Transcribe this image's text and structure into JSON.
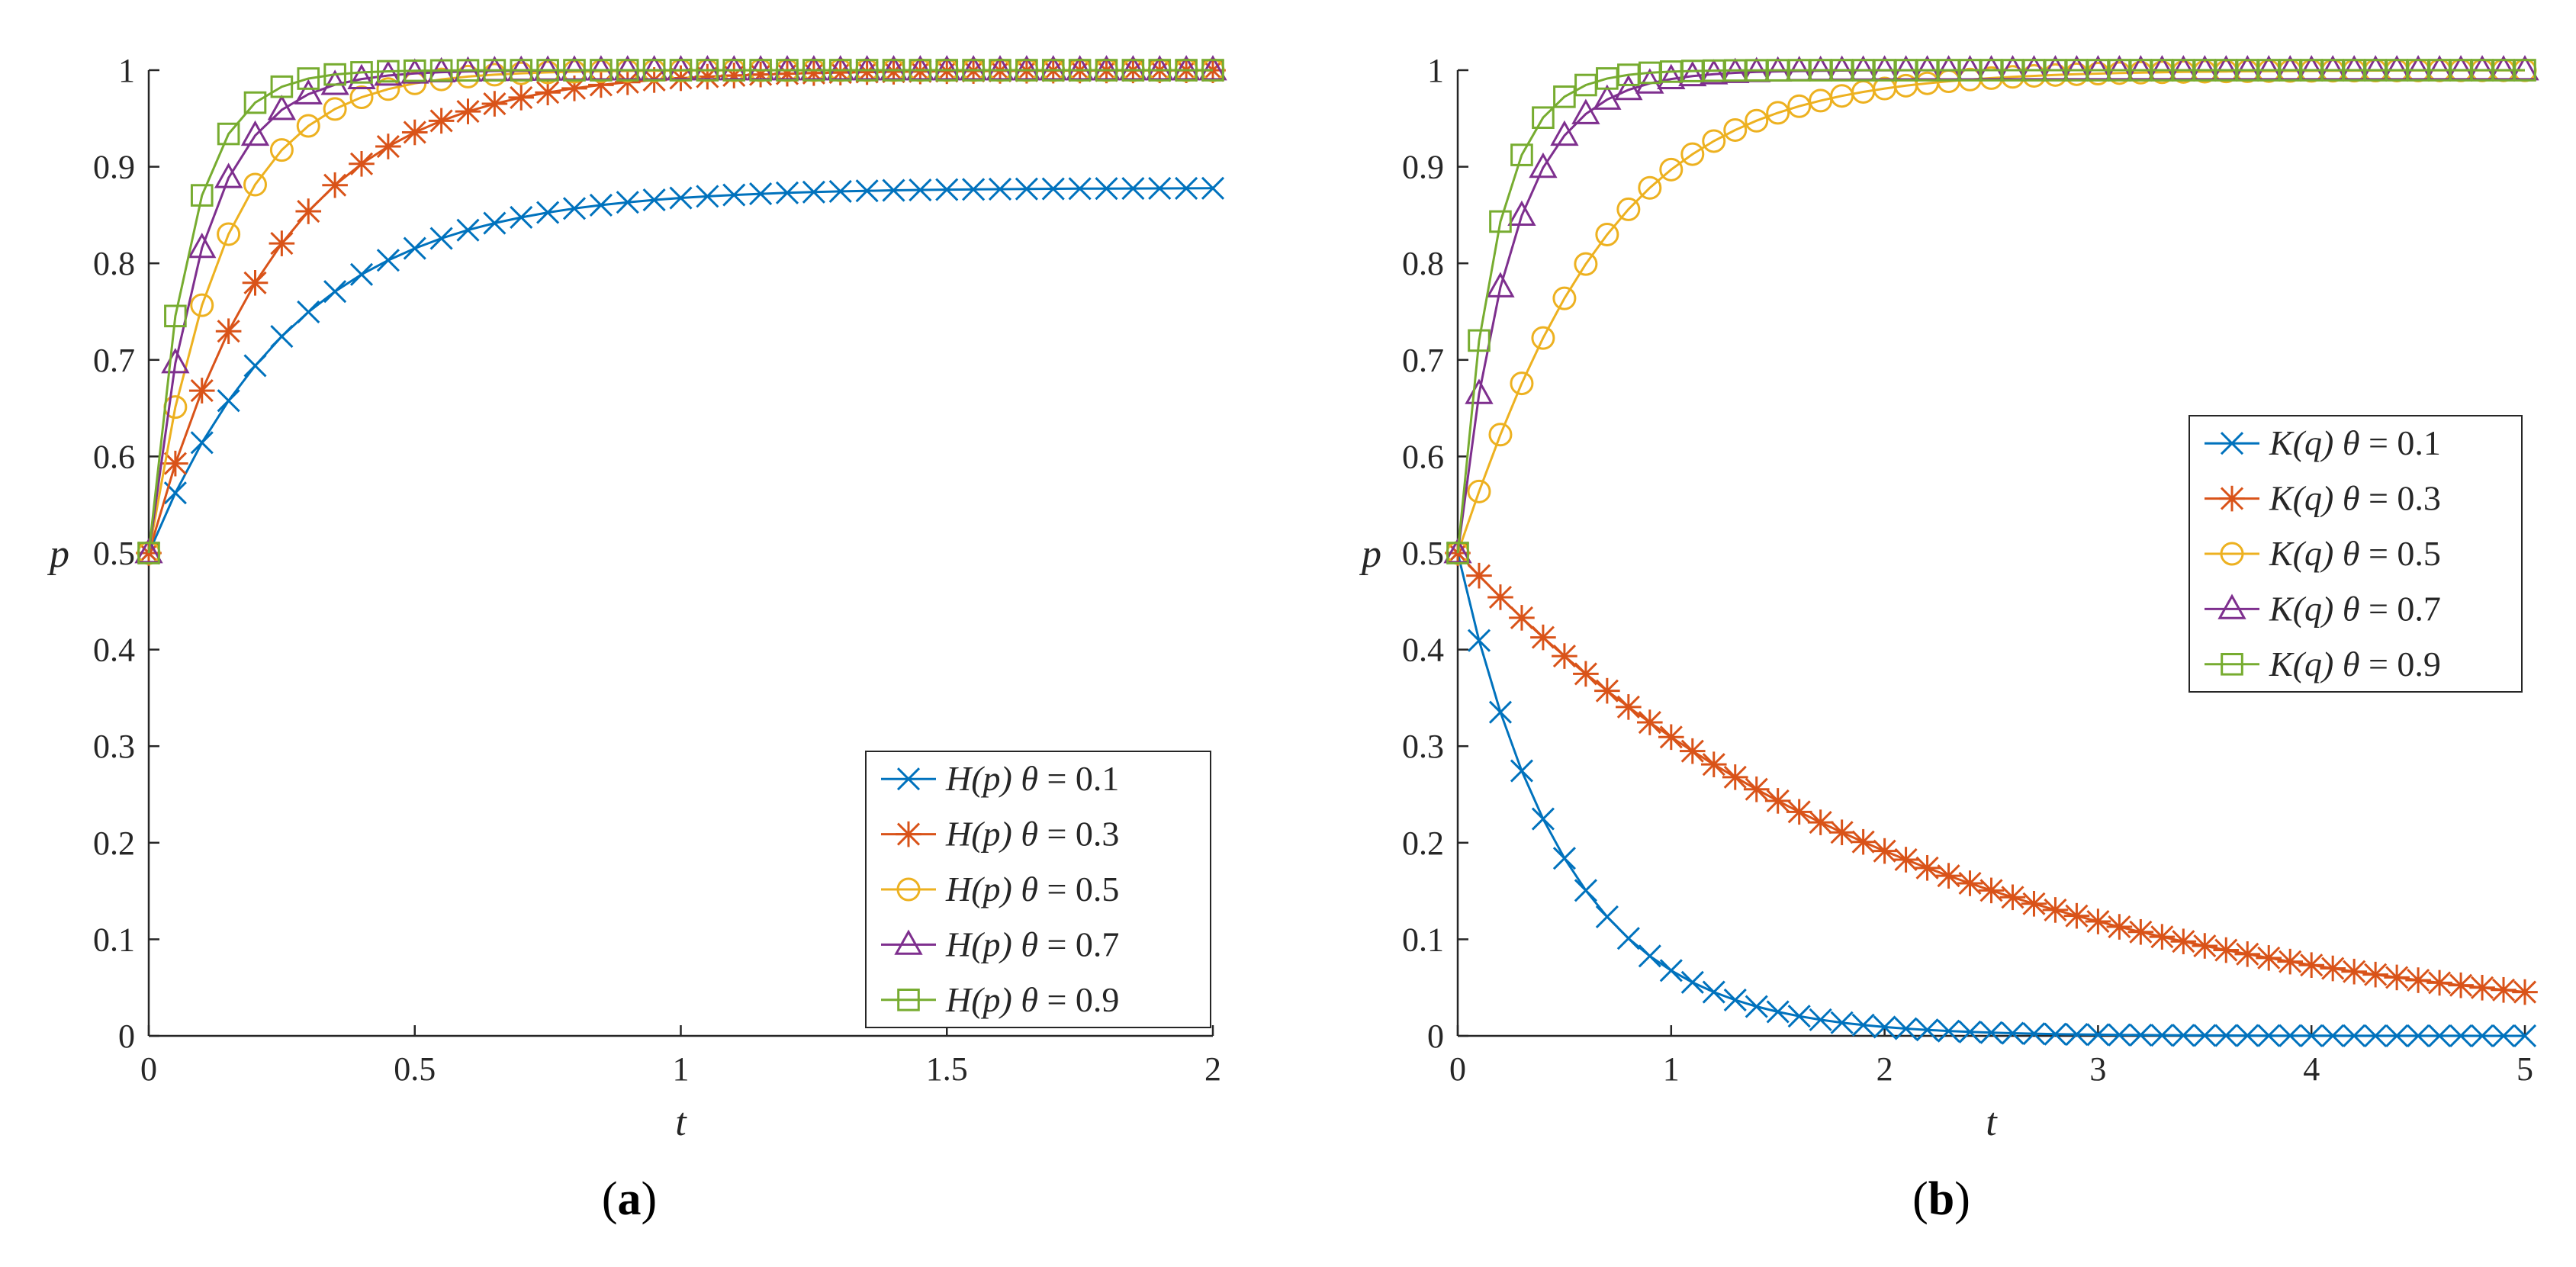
{
  "chart_data": [
    {
      "type": "line",
      "panel_label": "a",
      "xlabel": "t",
      "ylabel": "p",
      "xlim": [
        0,
        2
      ],
      "ylim": [
        0,
        1
      ],
      "xticks": [
        0,
        0.5,
        1,
        1.5,
        2
      ],
      "xtick_labels": [
        "0",
        "0.5",
        "1",
        "1.5",
        "2"
      ],
      "yticks": [
        0,
        0.1,
        0.2,
        0.3,
        0.4,
        0.5,
        0.6,
        0.7,
        0.8,
        0.9,
        1
      ],
      "ytick_labels": [
        "0",
        "0.1",
        "0.2",
        "0.3",
        "0.4",
        "0.5",
        "0.6",
        "0.7",
        "0.8",
        "0.9",
        "1"
      ],
      "legend_position": "bottom-right",
      "x_step": 0.05,
      "series": [
        {
          "name": "H(p) θ = 0.1",
          "func": "H",
          "theta": "0.1",
          "color": "#0072BD",
          "marker": "x",
          "start": 0.5,
          "limit": 0.878,
          "rate": 3.6
        },
        {
          "name": "H(p) θ = 0.3",
          "func": "H",
          "theta": "0.3",
          "color": "#D95319",
          "marker": "*",
          "start": 0.5,
          "limit": 1.0,
          "rate": 4.1
        },
        {
          "name": "H(p) θ = 0.5",
          "func": "H",
          "theta": "0.5",
          "color": "#EDB120",
          "marker": "o",
          "start": 0.5,
          "limit": 1.0,
          "rate": 7.2
        },
        {
          "name": "H(p) θ = 0.7",
          "func": "H",
          "theta": "0.7",
          "color": "#7E2F8E",
          "marker": "^",
          "start": 0.5,
          "limit": 1.0,
          "rate": 10.0
        },
        {
          "name": "H(p) θ = 0.9",
          "func": "H",
          "theta": "0.9",
          "color": "#77AC30",
          "marker": "s",
          "start": 0.5,
          "limit": 1.0,
          "rate": 13.5
        }
      ]
    },
    {
      "type": "line",
      "panel_label": "b",
      "xlabel": "t",
      "ylabel": "p",
      "xlim": [
        0,
        5
      ],
      "ylim": [
        0,
        1
      ],
      "xticks": [
        0,
        1,
        2,
        3,
        4,
        5
      ],
      "xtick_labels": [
        "0",
        "1",
        "2",
        "3",
        "4",
        "5"
      ],
      "yticks": [
        0,
        0.1,
        0.2,
        0.3,
        0.4,
        0.5,
        0.6,
        0.7,
        0.8,
        0.9,
        1
      ],
      "ytick_labels": [
        "0",
        "0.1",
        "0.2",
        "0.3",
        "0.4",
        "0.5",
        "0.6",
        "0.7",
        "0.8",
        "0.9",
        "1"
      ],
      "legend_position": "center-right",
      "x_step": 0.1,
      "series": [
        {
          "name": "K(q) θ = 0.1",
          "func": "K",
          "theta": "0.1",
          "color": "#0072BD",
          "marker": "x",
          "start": 0.5,
          "limit": 0.0,
          "rate": 2.0
        },
        {
          "name": "K(q) θ = 0.3",
          "func": "K",
          "theta": "0.3",
          "color": "#D95319",
          "marker": "*",
          "start": 0.5,
          "limit": 0.0,
          "rate": 0.48
        },
        {
          "name": "K(q) θ = 0.5",
          "func": "K",
          "theta": "0.5",
          "color": "#EDB120",
          "marker": "o",
          "start": 0.5,
          "limit": 1.0,
          "rate": 1.65,
          "dip": true
        },
        {
          "name": "K(q) θ = 0.7",
          "func": "K",
          "theta": "0.7",
          "color": "#7E2F8E",
          "marker": "^",
          "start": 0.5,
          "limit": 1.0,
          "rate": 4.0
        },
        {
          "name": "K(q) θ = 0.9",
          "func": "K",
          "theta": "0.9",
          "color": "#77AC30",
          "marker": "s",
          "start": 0.5,
          "limit": 1.0,
          "rate": 5.8
        }
      ]
    }
  ]
}
